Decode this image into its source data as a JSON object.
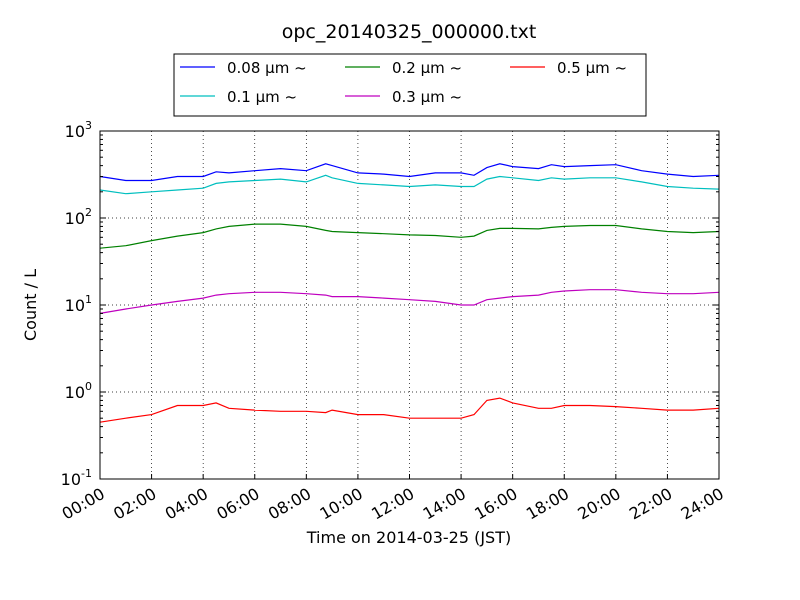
{
  "chart_data": {
    "type": "line",
    "title": "opc_20140325_000000.txt",
    "xlabel": "Time on 2014-03-25 (JST)",
    "ylabel": "Count / L",
    "y_scale": "log",
    "ylim": [
      0.1,
      1000
    ],
    "xlim": [
      "00:00",
      "24:00"
    ],
    "grid": true,
    "legend_position": "top",
    "x_ticks": [
      "00:00",
      "02:00",
      "04:00",
      "06:00",
      "08:00",
      "10:00",
      "12:00",
      "14:00",
      "16:00",
      "18:00",
      "20:00",
      "22:00",
      "24:00"
    ],
    "y_ticks": [
      {
        "base": "10",
        "exp": "-1"
      },
      {
        "base": "10",
        "exp": "0"
      },
      {
        "base": "10",
        "exp": "1"
      },
      {
        "base": "10",
        "exp": "2"
      },
      {
        "base": "10",
        "exp": "3"
      }
    ],
    "x": [
      "00:00",
      "01:00",
      "02:00",
      "03:00",
      "04:00",
      "04:30",
      "05:00",
      "06:00",
      "07:00",
      "08:00",
      "08:45",
      "09:00",
      "10:00",
      "11:00",
      "12:00",
      "13:00",
      "14:00",
      "14:30",
      "15:00",
      "15:30",
      "16:00",
      "17:00",
      "17:30",
      "18:00",
      "19:00",
      "20:00",
      "21:00",
      "22:00",
      "23:00",
      "24:00"
    ],
    "series": [
      {
        "name": "0.08 μm ~",
        "color": "#0000ff",
        "values": [
          300,
          270,
          270,
          300,
          300,
          340,
          330,
          350,
          370,
          350,
          420,
          400,
          330,
          320,
          300,
          330,
          330,
          310,
          380,
          420,
          390,
          370,
          410,
          390,
          400,
          410,
          350,
          320,
          300,
          310
        ]
      },
      {
        "name": "0.1 μm ~",
        "color": "#00bfbf",
        "values": [
          210,
          190,
          200,
          210,
          220,
          250,
          260,
          270,
          280,
          260,
          310,
          290,
          250,
          240,
          230,
          240,
          230,
          230,
          280,
          300,
          290,
          270,
          290,
          280,
          290,
          290,
          260,
          230,
          220,
          215
        ]
      },
      {
        "name": "0.2 μm ~",
        "color": "#008000",
        "values": [
          45,
          48,
          55,
          62,
          68,
          75,
          80,
          85,
          85,
          80,
          72,
          70,
          68,
          66,
          64,
          63,
          60,
          62,
          72,
          76,
          76,
          75,
          78,
          80,
          82,
          82,
          75,
          70,
          68,
          70
        ]
      },
      {
        "name": "0.3 μm ~",
        "color": "#bf00bf",
        "values": [
          8,
          9,
          10,
          11,
          12,
          13,
          13.5,
          14,
          14,
          13.5,
          13,
          12.5,
          12.5,
          12,
          11.5,
          11,
          10,
          10,
          11.5,
          12,
          12.5,
          13,
          14,
          14.5,
          15,
          15,
          14,
          13.5,
          13.5,
          14
        ]
      },
      {
        "name": "0.5 μm ~",
        "color": "#ff0000",
        "values": [
          0.45,
          0.5,
          0.55,
          0.7,
          0.7,
          0.75,
          0.65,
          0.62,
          0.6,
          0.6,
          0.58,
          0.62,
          0.55,
          0.55,
          0.5,
          0.5,
          0.5,
          0.55,
          0.8,
          0.85,
          0.75,
          0.65,
          0.65,
          0.7,
          0.7,
          0.68,
          0.65,
          0.62,
          0.62,
          0.65
        ]
      }
    ]
  }
}
